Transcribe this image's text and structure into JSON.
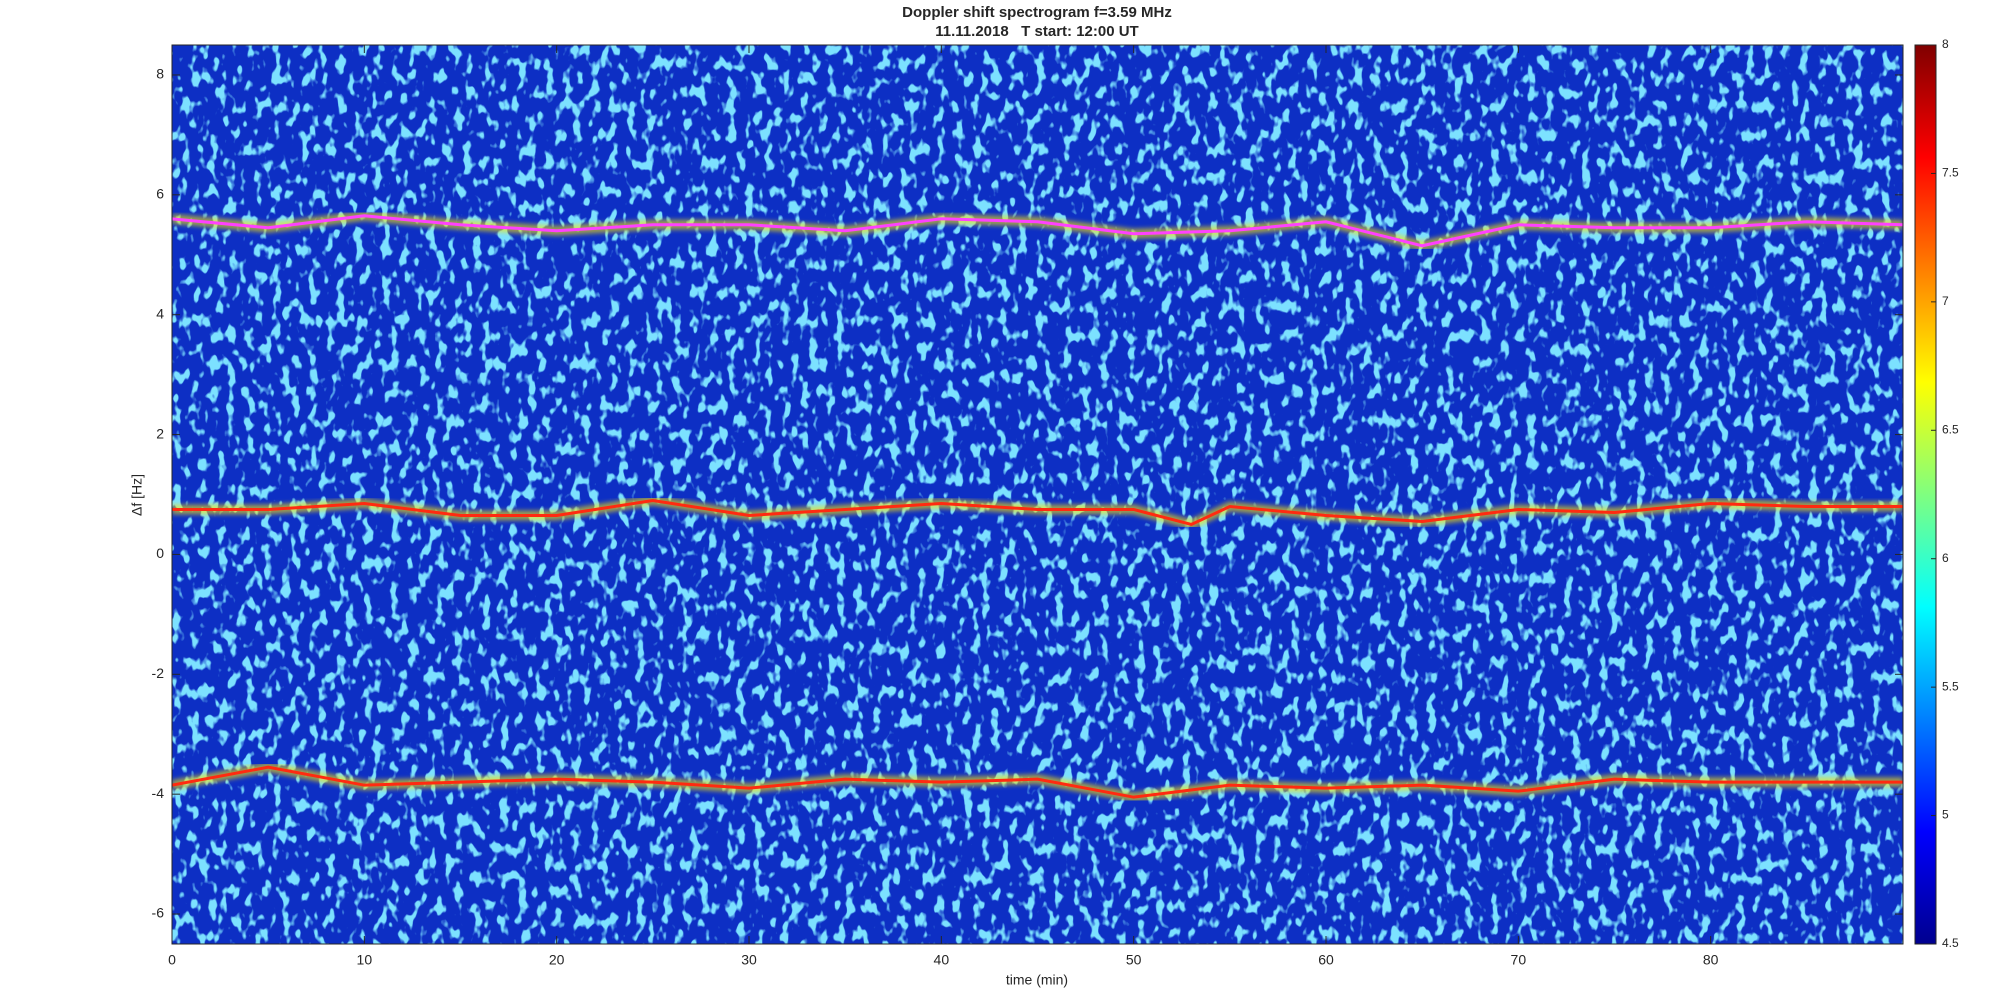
{
  "chart_data": {
    "type": "spectrogram",
    "title": "Doppler shift spectrogram f=3.59 MHz",
    "subtitle": "11.11.2018   T start: 12:00 UT",
    "x_label": "time (min)",
    "y_label": "Δf [Hz]",
    "xlim": [
      0,
      90
    ],
    "xticks": [
      0,
      10,
      20,
      30,
      40,
      50,
      60,
      70,
      80
    ],
    "ylim": [
      -6.5,
      8.5
    ],
    "yticks": [
      -6,
      -4,
      -2,
      0,
      2,
      4,
      6,
      8
    ],
    "colormap": "jet",
    "clim": [
      4.5,
      8
    ],
    "cticks": [
      4.5,
      5,
      5.5,
      6,
      6.5,
      7,
      7.5,
      8
    ],
    "series": [
      {
        "color": "#ff40ff",
        "x": [
          0,
          5,
          10,
          15,
          20,
          25,
          30,
          35,
          40,
          45,
          50,
          55,
          60,
          65,
          70,
          75,
          80,
          85,
          90
        ],
        "values": [
          5.6,
          5.45,
          5.65,
          5.5,
          5.4,
          5.5,
          5.5,
          5.4,
          5.6,
          5.55,
          5.35,
          5.4,
          5.55,
          5.15,
          5.5,
          5.45,
          5.45,
          5.55,
          5.5
        ]
      },
      {
        "color": "#ff2a10",
        "x": [
          0,
          5,
          10,
          15,
          20,
          25,
          30,
          35,
          40,
          45,
          50,
          53,
          55,
          60,
          65,
          70,
          75,
          80,
          85,
          90
        ],
        "values": [
          0.75,
          0.75,
          0.85,
          0.65,
          0.65,
          0.9,
          0.65,
          0.75,
          0.85,
          0.75,
          0.75,
          0.5,
          0.8,
          0.65,
          0.55,
          0.75,
          0.7,
          0.85,
          0.8,
          0.8
        ]
      },
      {
        "color": "#ff2a10",
        "x": [
          0,
          5,
          10,
          15,
          20,
          25,
          30,
          35,
          40,
          45,
          50,
          55,
          60,
          65,
          70,
          75,
          80,
          85,
          90
        ],
        "values": [
          -3.85,
          -3.55,
          -3.85,
          -3.8,
          -3.75,
          -3.8,
          -3.9,
          -3.75,
          -3.8,
          -3.75,
          -4.05,
          -3.85,
          -3.9,
          -3.85,
          -3.95,
          -3.75,
          -3.8,
          -3.8,
          -3.8
        ]
      }
    ]
  }
}
